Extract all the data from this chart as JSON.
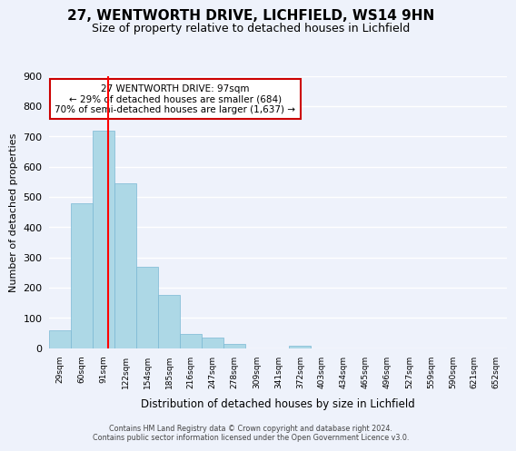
{
  "title": "27, WENTWORTH DRIVE, LICHFIELD, WS14 9HN",
  "subtitle": "Size of property relative to detached houses in Lichfield",
  "xlabel": "Distribution of detached houses by size in Lichfield",
  "ylabel": "Number of detached properties",
  "bin_labels": [
    "29sqm",
    "60sqm",
    "91sqm",
    "122sqm",
    "154sqm",
    "185sqm",
    "216sqm",
    "247sqm",
    "278sqm",
    "309sqm",
    "341sqm",
    "372sqm",
    "403sqm",
    "434sqm",
    "465sqm",
    "496sqm",
    "527sqm",
    "559sqm",
    "590sqm",
    "621sqm",
    "652sqm"
  ],
  "counts": [
    60,
    480,
    720,
    545,
    270,
    175,
    48,
    34,
    14,
    0,
    0,
    8,
    0,
    0,
    0,
    0,
    0,
    0,
    0,
    0,
    0
  ],
  "bar_color": "#add8e6",
  "bar_edge_color": "#7ab8d4",
  "vline_pos": 2.19,
  "vline_color": "red",
  "annotation_text": "27 WENTWORTH DRIVE: 97sqm\n← 29% of detached houses are smaller (684)\n70% of semi-detached houses are larger (1,637) →",
  "annotation_box_color": "white",
  "annotation_box_edge": "#cc0000",
  "ylim": [
    0,
    900
  ],
  "yticks": [
    0,
    100,
    200,
    300,
    400,
    500,
    600,
    700,
    800,
    900
  ],
  "footer_line1": "Contains HM Land Registry data © Crown copyright and database right 2024.",
  "footer_line2": "Contains public sector information licensed under the Open Government Licence v3.0.",
  "background_color": "#eef2fb",
  "plot_bg_color": "#eef2fb",
  "grid_color": "white"
}
